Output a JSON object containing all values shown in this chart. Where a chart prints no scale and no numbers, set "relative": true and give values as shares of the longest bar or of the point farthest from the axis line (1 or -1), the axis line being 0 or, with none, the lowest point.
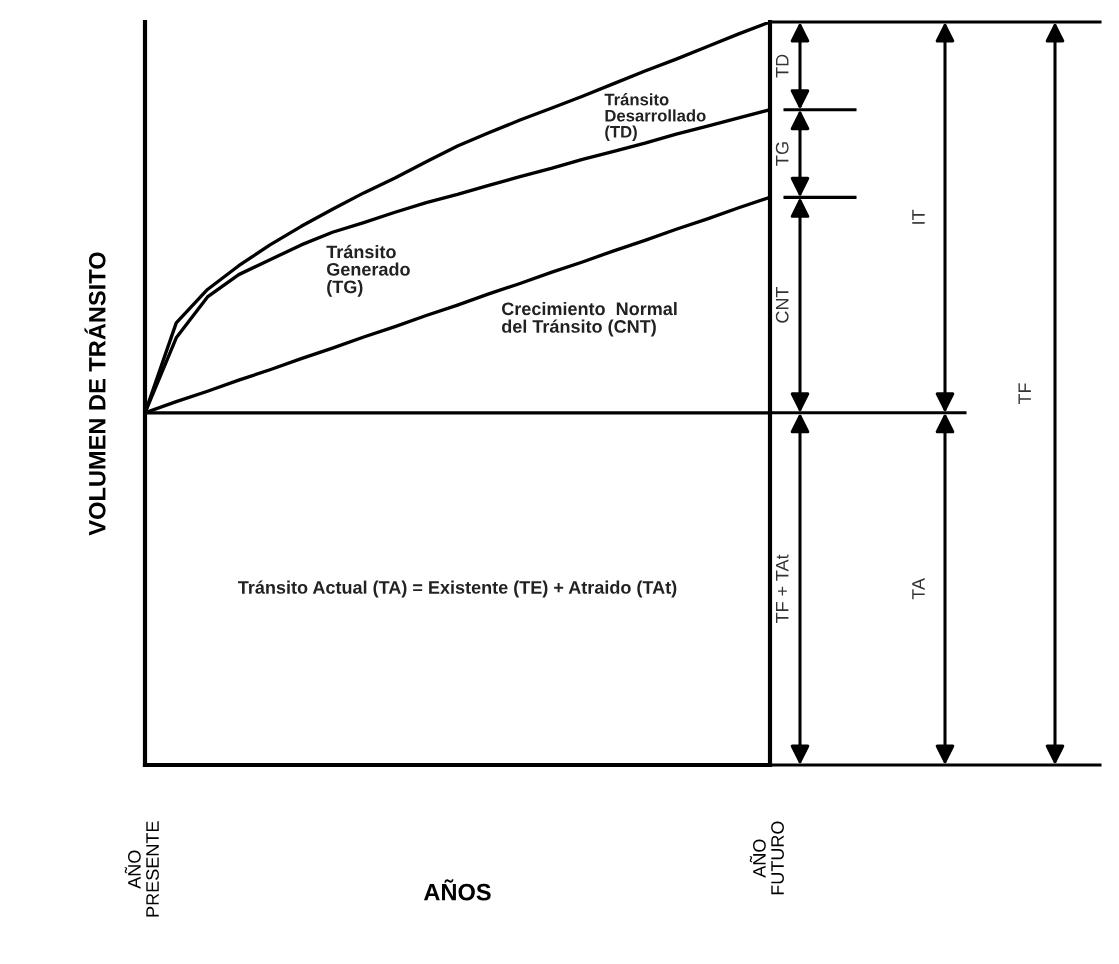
{
  "chart_data": {
    "type": "line",
    "relative": true,
    "xlabel": "AÑOS",
    "ylabel": "VOLUMEN DE TRÁNSITO",
    "categories": [
      "AÑO\nPRESENTE",
      null,
      null,
      null,
      null,
      null,
      null,
      null,
      null,
      null,
      null,
      null,
      null,
      null,
      null,
      null,
      null,
      null,
      null,
      null,
      "AÑO\nFUTURO"
    ],
    "tick_labels": "x",
    "marker": "none",
    "line_style": "solid",
    "series": [
      {
        "color": "#000000",
        "values": [
          0.474,
          0.474,
          0.474,
          0.474,
          0.474,
          0.474,
          0.474,
          0.474,
          0.474,
          0.474,
          0.474,
          0.474,
          0.474,
          0.474,
          0.474,
          0.474,
          0.474,
          0.474,
          0.474,
          0.474,
          0.474
        ]
      },
      {
        "color": "#000000",
        "values": [
          0.474,
          0.489,
          0.503,
          0.518,
          0.532,
          0.547,
          0.561,
          0.576,
          0.59,
          0.605,
          0.619,
          0.634,
          0.648,
          0.663,
          0.677,
          0.692,
          0.706,
          0.721,
          0.735,
          0.75,
          0.764
        ]
      },
      {
        "color": "#000000",
        "values": [
          0.474,
          0.575,
          0.63,
          0.66,
          0.68,
          0.7,
          0.717,
          0.73,
          0.744,
          0.757,
          0.768,
          0.78,
          0.792,
          0.803,
          0.815,
          0.826,
          0.837,
          0.849,
          0.86,
          0.871,
          0.882
        ]
      },
      {
        "color": "#000000",
        "values": [
          0.474,
          0.595,
          0.64,
          0.672,
          0.7,
          0.725,
          0.748,
          0.77,
          0.79,
          0.812,
          0.833,
          0.851,
          0.868,
          0.884,
          0.9,
          0.917,
          0.934,
          0.95,
          0.967,
          0.984,
          1
        ]
      }
    ],
    "annotations": [
      "Crecimiento  Normal\ndel Tránsito (CNT)",
      "Tránsito\nGenerado\n(TG)",
      "Tránsito\nDesarrollado\n(TD)",
      "Tránsito Actual (TA) = Existente (TE) + Atraido (TAt)",
      "TD",
      "TG",
      "CNT",
      "TF + TAt",
      "IT",
      "TA",
      "TF"
    ]
  }
}
